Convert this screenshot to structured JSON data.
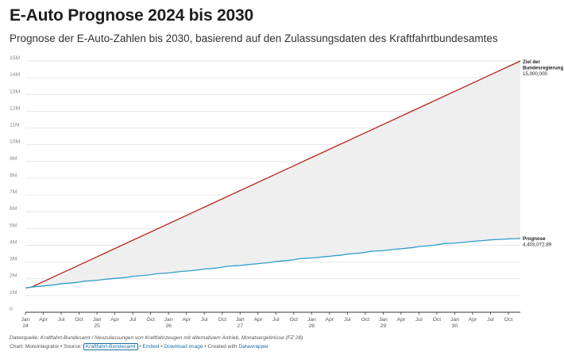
{
  "title": "E-Auto Prognose 2024 bis 2030",
  "subtitle": "Prognose der E-Auto-Zahlen bis 2030, basierend auf den Zulassungsdaten des Kraftfahrtbundesamtes",
  "footer": {
    "note": "Datenquelle: Kraftfahrt-Bundesamt / Neuzulassungen von Kraftfahrzeugen mit alternativem Antrieb, Monatsergebnisse (FZ 28)",
    "chart_by": "Chart: Motointegrator",
    "sep1": " • ",
    "source_prefix": "Source: ",
    "source_link": "Kraftfahrt-Bundesamt",
    "sep2": " • ",
    "embed": "Embed",
    "sep3": " • ",
    "download": "Download image",
    "sep4": " • ",
    "created_with": "Created with ",
    "datawrapper": "Datawrapper"
  },
  "colors": {
    "goal": "#b5231b",
    "forecast": "#2f9ccb",
    "area": "#efefef",
    "grid": "#e6e6e6"
  },
  "chart_data": {
    "type": "line",
    "title": "E-Auto Prognose 2024 bis 2030",
    "subtitle": "Prognose der E-Auto-Zahlen bis 2030, basierend auf den Zulassungsdaten des Kraftfahrtbundesamtes",
    "ylim": [
      0,
      15000000
    ],
    "yticks": [
      {
        "value": 0,
        "label": "0"
      },
      {
        "value": 1000000,
        "label": "1M"
      },
      {
        "value": 2000000,
        "label": "2M"
      },
      {
        "value": 3000000,
        "label": "3M"
      },
      {
        "value": 4000000,
        "label": "4M"
      },
      {
        "value": 5000000,
        "label": "5M"
      },
      {
        "value": 6000000,
        "label": "6M"
      },
      {
        "value": 7000000,
        "label": "7M"
      },
      {
        "value": 8000000,
        "label": "8M"
      },
      {
        "value": 9000000,
        "label": "9M"
      },
      {
        "value": 10000000,
        "label": "10M"
      },
      {
        "value": 11000000,
        "label": "11M"
      },
      {
        "value": 12000000,
        "label": "12M"
      },
      {
        "value": 13000000,
        "label": "13M"
      },
      {
        "value": 14000000,
        "label": "14M"
      },
      {
        "value": 15000000,
        "label": "15M"
      }
    ],
    "xlim": [
      "2024-01",
      "2030-12"
    ],
    "xticks": [
      {
        "date": "2024-01",
        "line1": "Jan",
        "line2": "24"
      },
      {
        "date": "2024-04",
        "line1": "Apr",
        "line2": ""
      },
      {
        "date": "2024-07",
        "line1": "Jul",
        "line2": ""
      },
      {
        "date": "2024-10",
        "line1": "Oct",
        "line2": ""
      },
      {
        "date": "2025-01",
        "line1": "Jan",
        "line2": "25"
      },
      {
        "date": "2025-04",
        "line1": "Apr",
        "line2": ""
      },
      {
        "date": "2025-07",
        "line1": "Jul",
        "line2": ""
      },
      {
        "date": "2025-10",
        "line1": "Oct",
        "line2": ""
      },
      {
        "date": "2026-01",
        "line1": "Jan",
        "line2": "26"
      },
      {
        "date": "2026-04",
        "line1": "Apr",
        "line2": ""
      },
      {
        "date": "2026-07",
        "line1": "Jul",
        "line2": ""
      },
      {
        "date": "2026-10",
        "line1": "Oct",
        "line2": ""
      },
      {
        "date": "2027-01",
        "line1": "Jan",
        "line2": "27"
      },
      {
        "date": "2027-04",
        "line1": "Apr",
        "line2": ""
      },
      {
        "date": "2027-07",
        "line1": "Jul",
        "line2": ""
      },
      {
        "date": "2027-10",
        "line1": "Oct",
        "line2": ""
      },
      {
        "date": "2028-01",
        "line1": "Jan",
        "line2": "28"
      },
      {
        "date": "2028-04",
        "line1": "Apr",
        "line2": ""
      },
      {
        "date": "2028-07",
        "line1": "Jul",
        "line2": ""
      },
      {
        "date": "2028-10",
        "line1": "Oct",
        "line2": ""
      },
      {
        "date": "2029-01",
        "line1": "Jan",
        "line2": "29"
      },
      {
        "date": "2029-04",
        "line1": "Apr",
        "line2": ""
      },
      {
        "date": "2029-07",
        "line1": "Jul",
        "line2": ""
      },
      {
        "date": "2029-10",
        "line1": "Oct",
        "line2": ""
      },
      {
        "date": "2030-01",
        "line1": "Jan",
        "line2": "30"
      },
      {
        "date": "2030-04",
        "line1": "Apr",
        "line2": ""
      },
      {
        "date": "2030-07",
        "line1": "Jul",
        "line2": ""
      },
      {
        "date": "2030-10",
        "line1": "Oct",
        "line2": ""
      }
    ],
    "series": [
      {
        "name": "Ziel der Bundesregierung",
        "label_lines": [
          "Ziel der",
          "Bundesregierung"
        ],
        "end_value_label": "15,000,000",
        "points": [
          {
            "x": "2024-01",
            "y": 1450000
          },
          {
            "x": "2024-02",
            "y": 1500000
          },
          {
            "x": "2030-12",
            "y": 15000000
          }
        ]
      },
      {
        "name": "Prognose",
        "label_lines": [
          "Prognose"
        ],
        "end_value_label": "4,403,072.89",
        "points": [
          {
            "x": "2024-01",
            "y": 1450000
          },
          {
            "x": "2024-02",
            "y": 1500000
          },
          {
            "x": "2024-03",
            "y": 1540000
          },
          {
            "x": "2024-04",
            "y": 1570000
          },
          {
            "x": "2024-05",
            "y": 1610000
          },
          {
            "x": "2024-06",
            "y": 1640000
          },
          {
            "x": "2024-07",
            "y": 1700000
          },
          {
            "x": "2024-08",
            "y": 1730000
          },
          {
            "x": "2024-09",
            "y": 1760000
          },
          {
            "x": "2024-10",
            "y": 1800000
          },
          {
            "x": "2024-11",
            "y": 1860000
          },
          {
            "x": "2024-12",
            "y": 1880000
          },
          {
            "x": "2025-01",
            "y": 1910000
          },
          {
            "x": "2025-02",
            "y": 1950000
          },
          {
            "x": "2025-03",
            "y": 1990000
          },
          {
            "x": "2025-04",
            "y": 2020000
          },
          {
            "x": "2025-05",
            "y": 2050000
          },
          {
            "x": "2025-06",
            "y": 2080000
          },
          {
            "x": "2025-07",
            "y": 2140000
          },
          {
            "x": "2025-08",
            "y": 2170000
          },
          {
            "x": "2025-09",
            "y": 2200000
          },
          {
            "x": "2025-10",
            "y": 2240000
          },
          {
            "x": "2025-11",
            "y": 2300000
          },
          {
            "x": "2025-12",
            "y": 2320000
          },
          {
            "x": "2026-01",
            "y": 2350000
          },
          {
            "x": "2026-02",
            "y": 2390000
          },
          {
            "x": "2026-03",
            "y": 2430000
          },
          {
            "x": "2026-04",
            "y": 2460000
          },
          {
            "x": "2026-05",
            "y": 2490000
          },
          {
            "x": "2026-06",
            "y": 2530000
          },
          {
            "x": "2026-07",
            "y": 2580000
          },
          {
            "x": "2026-08",
            "y": 2610000
          },
          {
            "x": "2026-09",
            "y": 2640000
          },
          {
            "x": "2026-10",
            "y": 2690000
          },
          {
            "x": "2026-11",
            "y": 2750000
          },
          {
            "x": "2026-12",
            "y": 2770000
          },
          {
            "x": "2027-01",
            "y": 2790000
          },
          {
            "x": "2027-02",
            "y": 2830000
          },
          {
            "x": "2027-03",
            "y": 2870000
          },
          {
            "x": "2027-04",
            "y": 2900000
          },
          {
            "x": "2027-05",
            "y": 2940000
          },
          {
            "x": "2027-06",
            "y": 2970000
          },
          {
            "x": "2027-07",
            "y": 3030000
          },
          {
            "x": "2027-08",
            "y": 3060000
          },
          {
            "x": "2027-09",
            "y": 3090000
          },
          {
            "x": "2027-10",
            "y": 3130000
          },
          {
            "x": "2027-11",
            "y": 3200000
          },
          {
            "x": "2027-12",
            "y": 3220000
          },
          {
            "x": "2028-01",
            "y": 3240000
          },
          {
            "x": "2028-02",
            "y": 3270000
          },
          {
            "x": "2028-03",
            "y": 3310000
          },
          {
            "x": "2028-04",
            "y": 3340000
          },
          {
            "x": "2028-05",
            "y": 3380000
          },
          {
            "x": "2028-06",
            "y": 3410000
          },
          {
            "x": "2028-07",
            "y": 3470000
          },
          {
            "x": "2028-08",
            "y": 3500000
          },
          {
            "x": "2028-09",
            "y": 3530000
          },
          {
            "x": "2028-10",
            "y": 3580000
          },
          {
            "x": "2028-11",
            "y": 3640000
          },
          {
            "x": "2028-12",
            "y": 3660000
          },
          {
            "x": "2029-01",
            "y": 3680000
          },
          {
            "x": "2029-02",
            "y": 3720000
          },
          {
            "x": "2029-03",
            "y": 3760000
          },
          {
            "x": "2029-04",
            "y": 3790000
          },
          {
            "x": "2029-05",
            "y": 3830000
          },
          {
            "x": "2029-06",
            "y": 3860000
          },
          {
            "x": "2029-07",
            "y": 3920000
          },
          {
            "x": "2029-08",
            "y": 3950000
          },
          {
            "x": "2029-09",
            "y": 3980000
          },
          {
            "x": "2029-10",
            "y": 4030000
          },
          {
            "x": "2029-11",
            "y": 4090000
          },
          {
            "x": "2029-12",
            "y": 4110000
          },
          {
            "x": "2030-01",
            "y": 4130000
          },
          {
            "x": "2030-02",
            "y": 4160000
          },
          {
            "x": "2030-03",
            "y": 4200000
          },
          {
            "x": "2030-04",
            "y": 4230000
          },
          {
            "x": "2030-05",
            "y": 4260000
          },
          {
            "x": "2030-06",
            "y": 4290000
          },
          {
            "x": "2030-07",
            "y": 4320000
          },
          {
            "x": "2030-08",
            "y": 4340000
          },
          {
            "x": "2030-09",
            "y": 4360000
          },
          {
            "x": "2030-10",
            "y": 4380000
          },
          {
            "x": "2030-11",
            "y": 4395000
          },
          {
            "x": "2030-12",
            "y": 4403072.89
          }
        ]
      }
    ],
    "shaded_area": "between Ziel der Bundesregierung and Prognose",
    "grid": true,
    "legend": "none (direct labels at line ends)"
  }
}
